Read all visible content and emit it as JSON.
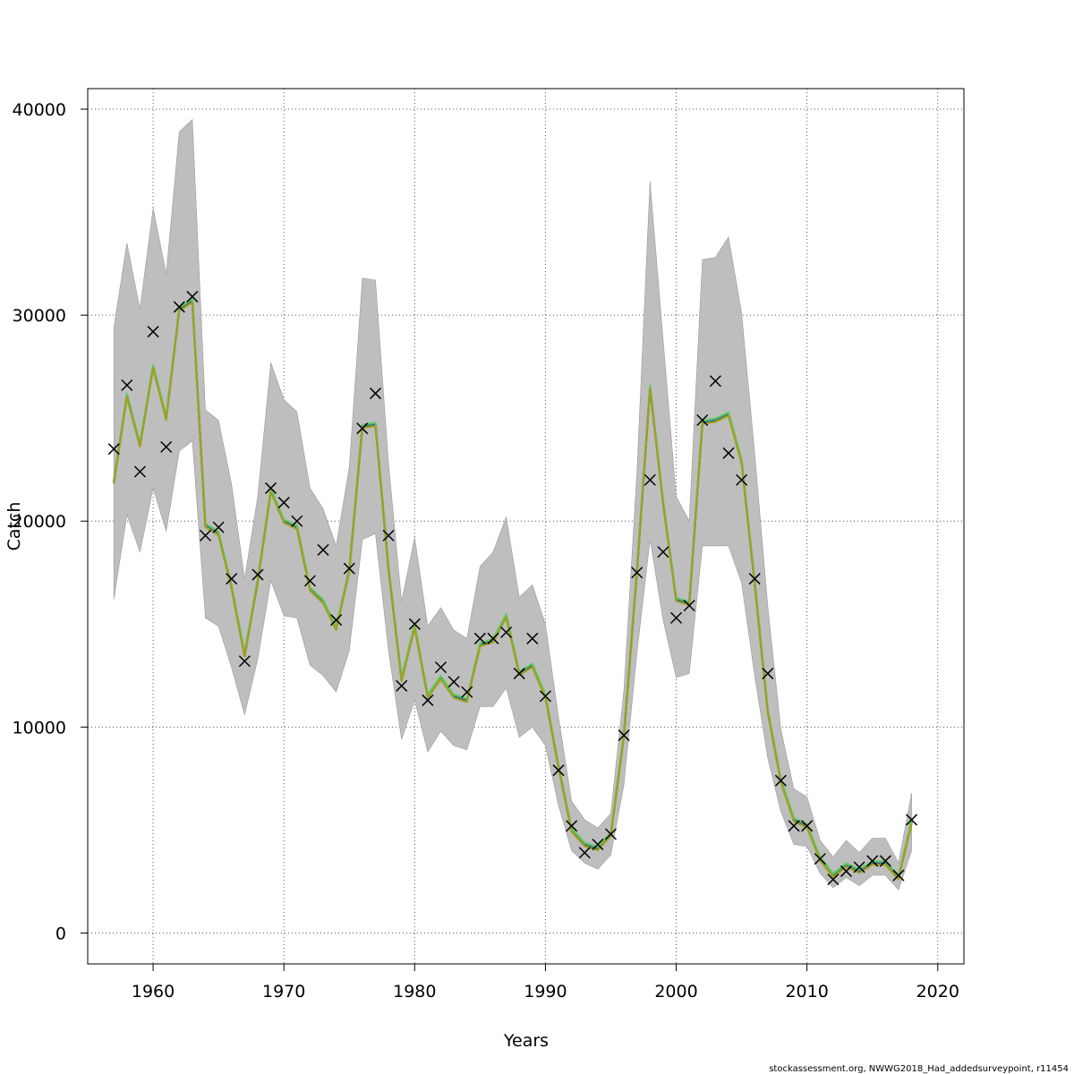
{
  "chart_data": {
    "type": "line",
    "xlabel": "Years",
    "ylabel": "Catch",
    "xlim": [
      1955,
      2022
    ],
    "ylim": [
      -1500,
      41000
    ],
    "xticks": [
      1960,
      1970,
      1980,
      1990,
      2000,
      2010,
      2020
    ],
    "yticks": [
      0,
      10000,
      20000,
      30000,
      40000
    ],
    "grid": true,
    "grid_style": "dotted",
    "credit": "stockassessment.org, NWWG2018_Had_addedsurveypoint, r11454",
    "colors": {
      "band": "#bebebe",
      "fit": [
        "#440154",
        "#21908c",
        "#3b528b",
        "#5dc863",
        "#a0a020"
      ],
      "obs": "#000000"
    },
    "years": [
      1957,
      1958,
      1959,
      1960,
      1961,
      1962,
      1963,
      1964,
      1965,
      1966,
      1967,
      1968,
      1969,
      1970,
      1971,
      1972,
      1973,
      1974,
      1975,
      1976,
      1977,
      1978,
      1979,
      1980,
      1981,
      1982,
      1983,
      1984,
      1985,
      1986,
      1987,
      1988,
      1989,
      1990,
      1991,
      1992,
      1993,
      1994,
      1995,
      1996,
      1997,
      1998,
      1999,
      2000,
      2001,
      2002,
      2003,
      2004,
      2005,
      2006,
      2007,
      2008,
      2009,
      2010,
      2011,
      2012,
      2013,
      2014,
      2015,
      2016,
      2017,
      2018
    ],
    "fitted": [
      21900,
      26100,
      23700,
      27500,
      25000,
      30300,
      30700,
      19800,
      19400,
      16800,
      13500,
      17100,
      21500,
      20000,
      19700,
      16700,
      16100,
      14800,
      17600,
      24600,
      24700,
      17700,
      12300,
      14900,
      11500,
      12400,
      11500,
      11300,
      14000,
      14200,
      15400,
      12600,
      13000,
      11500,
      8100,
      5000,
      4300,
      4100,
      4800,
      9600,
      17600,
      26500,
      20900,
      16200,
      16000,
      24800,
      24900,
      25200,
      22900,
      17000,
      10800,
      7400,
      5500,
      5200,
      3600,
      2800,
      3300,
      3000,
      3400,
      3400,
      2700,
      5400
    ],
    "upper": [
      29400,
      33500,
      30300,
      35200,
      32000,
      38900,
      39500,
      25400,
      24900,
      21800,
      17200,
      21200,
      27700,
      25900,
      25300,
      21600,
      20600,
      18800,
      22600,
      31800,
      31700,
      22800,
      16100,
      19200,
      14900,
      15800,
      14700,
      14300,
      17800,
      18500,
      20200,
      16300,
      16900,
      15000,
      10500,
      6400,
      5500,
      5100,
      5800,
      11800,
      22400,
      36500,
      28800,
      21200,
      20000,
      32700,
      32800,
      33800,
      30100,
      23300,
      15900,
      9900,
      7000,
      6600,
      4500,
      3700,
      4500,
      3900,
      4600,
      4600,
      3400,
      6800
    ],
    "lower": [
      16200,
      20300,
      18500,
      21600,
      19500,
      23400,
      23900,
      15300,
      14900,
      12900,
      10600,
      13300,
      17100,
      15400,
      15300,
      13000,
      12500,
      11700,
      13700,
      19100,
      19400,
      13700,
      9400,
      11300,
      8800,
      9800,
      9100,
      8900,
      11000,
      11000,
      11900,
      9500,
      10000,
      9100,
      6200,
      4000,
      3400,
      3100,
      3800,
      7200,
      13600,
      19100,
      15200,
      12400,
      12600,
      18800,
      18800,
      18800,
      17000,
      12500,
      8500,
      5900,
      4300,
      4200,
      2900,
      2200,
      2700,
      2300,
      2800,
      2800,
      2100,
      4000
    ],
    "observed": [
      23500,
      26600,
      22400,
      29200,
      23600,
      30400,
      30900,
      19300,
      19700,
      17200,
      13200,
      17400,
      21600,
      20900,
      20000,
      17100,
      18600,
      15200,
      17700,
      24500,
      26200,
      19300,
      12000,
      15000,
      11300,
      12900,
      12200,
      11700,
      14300,
      14300,
      14600,
      12600,
      14300,
      11500,
      7900,
      5200,
      3900,
      4300,
      4800,
      9600,
      17500,
      22000,
      18500,
      15300,
      15900,
      24900,
      26800,
      23300,
      22000,
      17200,
      12600,
      7400,
      5200,
      5200,
      3600,
      2600,
      3000,
      3200,
      3500,
      3500,
      2800,
      5500
    ]
  }
}
